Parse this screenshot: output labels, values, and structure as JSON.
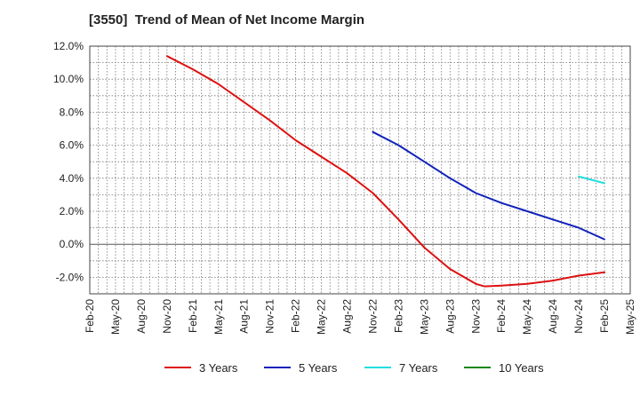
{
  "chart_data": {
    "type": "line",
    "title": "[3550]  Trend of Mean of Net Income Margin",
    "xlabel": "",
    "ylabel": "",
    "ylim": [
      -3,
      12
    ],
    "y_ticks": [
      12,
      10,
      8,
      6,
      4,
      2,
      0,
      -2
    ],
    "y_tick_labels": [
      "12.0%",
      "10.0%",
      "8.0%",
      "6.0%",
      "4.0%",
      "2.0%",
      "0.0%",
      "-2.0%"
    ],
    "x_tick_labels": [
      "Feb-20",
      "May-20",
      "Aug-20",
      "Nov-20",
      "Feb-21",
      "May-21",
      "Aug-21",
      "Nov-21",
      "Feb-22",
      "May-22",
      "Aug-22",
      "Nov-22",
      "Feb-23",
      "May-23",
      "Aug-23",
      "Nov-23",
      "Feb-24",
      "May-24",
      "Aug-24",
      "Nov-24",
      "Feb-25",
      "May-25"
    ],
    "grid": true,
    "legend_position": "bottom",
    "series": [
      {
        "name": "3 Years",
        "color": "#dd1111",
        "x": [
          "Nov-20",
          "Feb-21",
          "May-21",
          "Aug-21",
          "Nov-21",
          "Feb-22",
          "May-22",
          "Aug-22",
          "Nov-22",
          "Feb-23",
          "May-23",
          "Aug-23",
          "Nov-23",
          "Dec-23",
          "Feb-24",
          "May-24",
          "Aug-24",
          "Nov-24",
          "Feb-25"
        ],
        "values": [
          11.4,
          10.6,
          9.7,
          8.6,
          7.5,
          6.3,
          5.3,
          4.3,
          3.1,
          1.5,
          -0.2,
          -1.5,
          -2.4,
          -2.55,
          -2.5,
          -2.4,
          -2.2,
          -1.9,
          -1.7
        ]
      },
      {
        "name": "5 Years",
        "color": "#1122bb",
        "x": [
          "Nov-22",
          "Feb-23",
          "May-23",
          "Aug-23",
          "Nov-23",
          "Feb-24",
          "May-24",
          "Aug-24",
          "Nov-24",
          "Feb-25"
        ],
        "values": [
          6.8,
          6.0,
          5.0,
          4.0,
          3.1,
          2.5,
          2.0,
          1.5,
          1.0,
          0.3
        ]
      },
      {
        "name": "7 Years",
        "color": "#22dddd",
        "x": [
          "Nov-24",
          "Feb-25"
        ],
        "values": [
          4.1,
          3.7
        ]
      },
      {
        "name": "10 Years",
        "color": "#118811",
        "x": [],
        "values": []
      }
    ]
  }
}
